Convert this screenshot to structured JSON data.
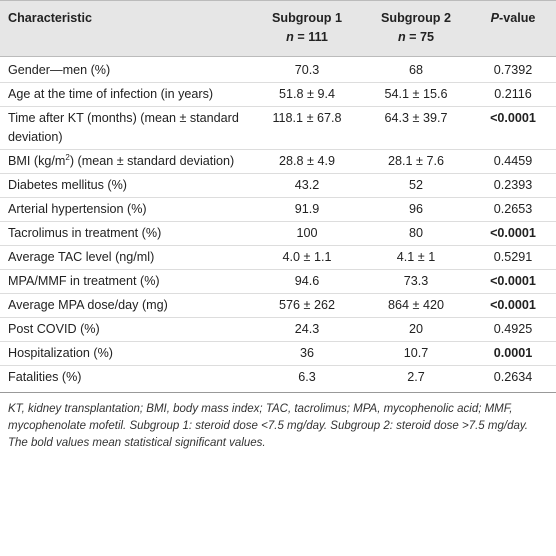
{
  "table": {
    "header": {
      "characteristic": "Characteristic",
      "subgroup1": {
        "title": "Subgroup 1",
        "n": [
          "n",
          "= 111"
        ]
      },
      "subgroup2": {
        "title": "Subgroup 2",
        "n": [
          "n",
          "= 75"
        ]
      },
      "p_value": [
        "P",
        "-value"
      ]
    },
    "rows": [
      {
        "characteristic": [
          "Gender—men (%)"
        ],
        "subgroup1": "70.3",
        "subgroup2": "68",
        "p_value": "0.7392",
        "significant": false
      },
      {
        "characteristic": [
          "Age at the time of infection (in years)"
        ],
        "subgroup1": "51.8 ± 9.4",
        "subgroup2": "54.1 ± 15.6",
        "p_value": "0.2116",
        "significant": false
      },
      {
        "characteristic": [
          "Time after KT (months) (mean ± standard deviation)"
        ],
        "subgroup1": "118.1 ± 67.8",
        "subgroup2": "64.3 ± 39.7",
        "p_value": "<0.0001",
        "significant": true
      },
      {
        "characteristic": [
          "BMI (kg/m",
          "2",
          ") (mean ± standard deviation)"
        ],
        "subgroup1": "28.8 ± 4.9",
        "subgroup2": "28.1 ± 7.6",
        "p_value": "0.4459",
        "significant": false
      },
      {
        "characteristic": [
          "Diabetes mellitus (%)"
        ],
        "subgroup1": "43.2",
        "subgroup2": "52",
        "p_value": "0.2393",
        "significant": false
      },
      {
        "characteristic": [
          "Arterial hypertension (%)"
        ],
        "subgroup1": "91.9",
        "subgroup2": "96",
        "p_value": "0.2653",
        "significant": false
      },
      {
        "characteristic": [
          "Tacrolimus in treatment (%)"
        ],
        "subgroup1": "100",
        "subgroup2": "80",
        "p_value": "<0.0001",
        "significant": true
      },
      {
        "characteristic": [
          "Average TAC level (ng/ml)"
        ],
        "subgroup1": "4.0 ± 1.1",
        "subgroup2": "4.1 ± 1",
        "p_value": "0.5291",
        "significant": false
      },
      {
        "characteristic": [
          "MPA/MMF in treatment (%)"
        ],
        "subgroup1": "94.6",
        "subgroup2": "73.3",
        "p_value": "<0.0001",
        "significant": true
      },
      {
        "characteristic": [
          "Average MPA dose/day (mg)"
        ],
        "subgroup1": "576 ± 262",
        "subgroup2": "864 ± 420",
        "p_value": "<0.0001",
        "significant": true
      },
      {
        "characteristic": [
          "Post COVID (%)"
        ],
        "subgroup1": "24.3",
        "subgroup2": "20",
        "p_value": "0.4925",
        "significant": false
      },
      {
        "characteristic": [
          "Hospitalization (%)"
        ],
        "subgroup1": "36",
        "subgroup2": "10.7",
        "p_value": "0.0001",
        "significant": true
      },
      {
        "characteristic": [
          "Fatalities (%)"
        ],
        "subgroup1": "6.3",
        "subgroup2": "2.7",
        "p_value": "0.2634",
        "significant": false
      }
    ]
  },
  "notes": [
    "KT, kidney transplantation; BMI, body mass index; TAC, tacrolimus; MPA, mycophenolic acid; MMF, mycophenolate mofetil. Subgroup 1: steroid dose <7.5 mg/day. Subgroup 2: steroid dose >7.5 mg/day.",
    "The bold values mean statistical significant values."
  ]
}
